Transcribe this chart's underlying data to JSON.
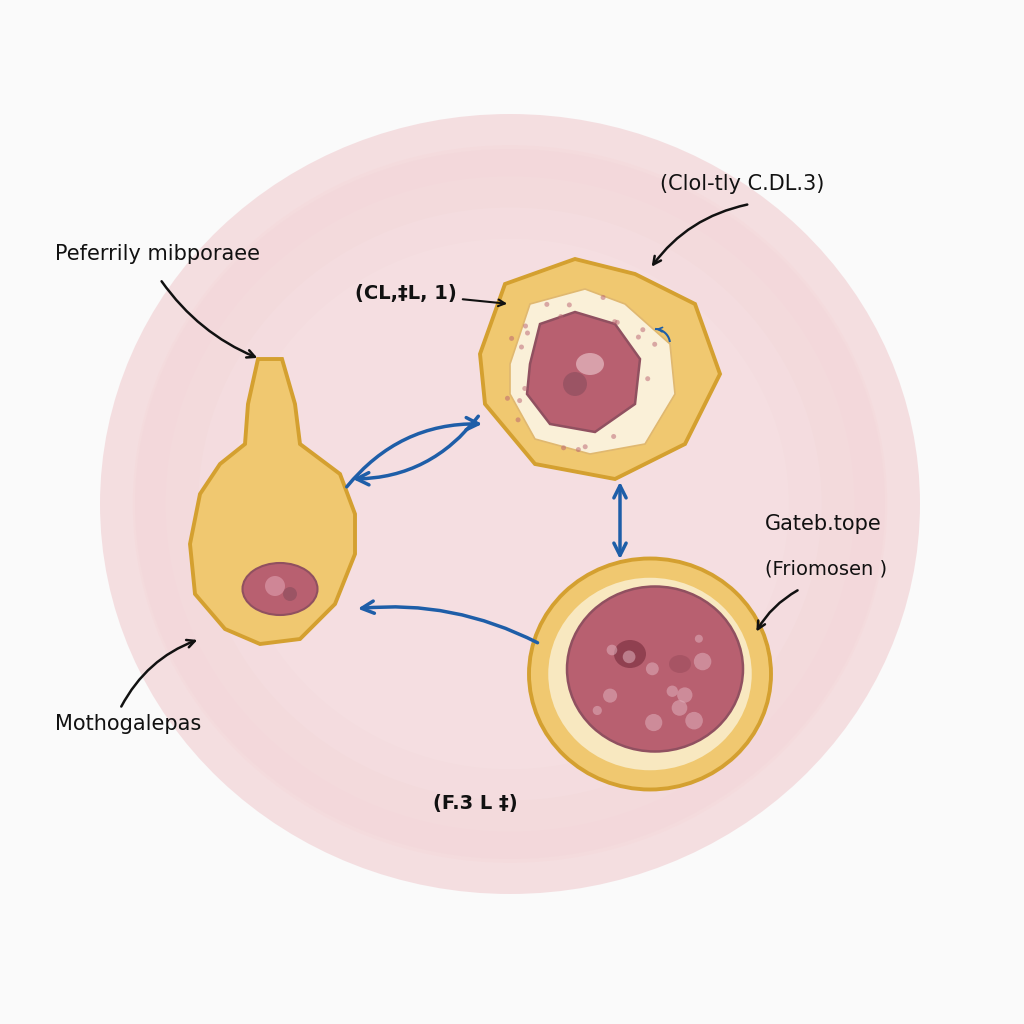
{
  "background_color": "#fafafa",
  "glow_color": "#f0d0d5",
  "cell_outer_color": "#f0c870",
  "cell_outer_edge": "#d4a030",
  "cell_inner_light": "#faf0d8",
  "nucleus_color": "#b86070",
  "nucleus_edge": "#905060",
  "nucleus_light": "#d090a0",
  "arrow_color": "#1e5ea8",
  "text_color": "#111111",
  "label_arrow_color": "#111111",
  "labels": {
    "top_left_main": "Peferrily mibporaee",
    "top_left_sub": "(CL,‡L, 1)",
    "top_right_main": "(Clol-tly C.DL.3)",
    "bottom_right_main": "Gateb.tope",
    "bottom_right_sub": "(Friomosen )",
    "bottom_left_main": "Mothogalepas",
    "bottom_center_main": "(F.3 L ‡)"
  },
  "fig_width": 10.24,
  "fig_height": 10.24,
  "dpi": 100
}
